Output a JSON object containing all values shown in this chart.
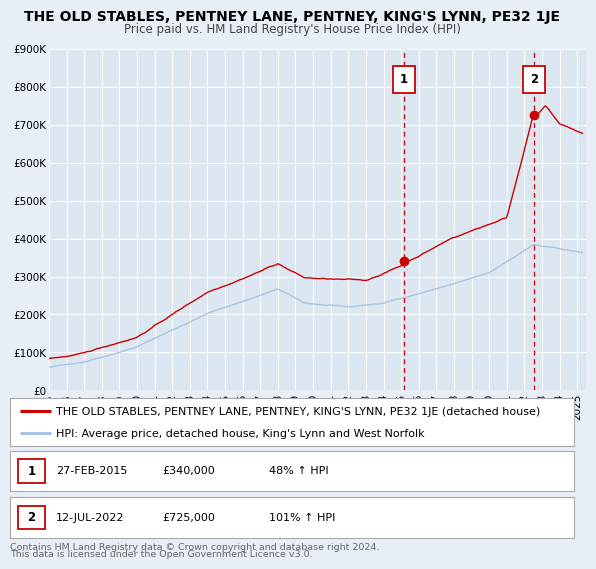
{
  "title": "THE OLD STABLES, PENTNEY LANE, PENTNEY, KING'S LYNN, PE32 1JE",
  "subtitle": "Price paid vs. HM Land Registry's House Price Index (HPI)",
  "xlim_start": 1995.0,
  "xlim_end": 2025.5,
  "ylim": [
    0,
    900000
  ],
  "yticks": [
    0,
    100000,
    200000,
    300000,
    400000,
    500000,
    600000,
    700000,
    800000,
    900000
  ],
  "ytick_labels": [
    "£0",
    "£100K",
    "£200K",
    "£300K",
    "£400K",
    "£500K",
    "£600K",
    "£700K",
    "£800K",
    "£900K"
  ],
  "hpi_color": "#aac4e0",
  "property_color": "#cc0000",
  "marker_color": "#cc0000",
  "vline_color": "#cc0000",
  "sale1_x": 2015.16,
  "sale1_y": 340000,
  "sale2_x": 2022.54,
  "sale2_y": 725000,
  "legend_line1": "THE OLD STABLES, PENTNEY LANE, PENTNEY, KING'S LYNN, PE32 1JE (detached house)",
  "legend_line2": "HPI: Average price, detached house, King's Lynn and West Norfolk",
  "ann1_date": "27-FEB-2015",
  "ann1_price": "£340,000",
  "ann1_hpi": "48% ↑ HPI",
  "ann2_date": "12-JUL-2022",
  "ann2_price": "£725,000",
  "ann2_hpi": "101% ↑ HPI",
  "footer1": "Contains HM Land Registry data © Crown copyright and database right 2024.",
  "footer2": "This data is licensed under the Open Government Licence v3.0.",
  "background_color": "#e8eef5",
  "plot_bg_color": "#dce6f0",
  "grid_color": "#ffffff",
  "title_fontsize": 10,
  "subtitle_fontsize": 8.5,
  "tick_fontsize": 7.5,
  "legend_fontsize": 8,
  "ann_fontsize": 8,
  "footer_fontsize": 6.8
}
